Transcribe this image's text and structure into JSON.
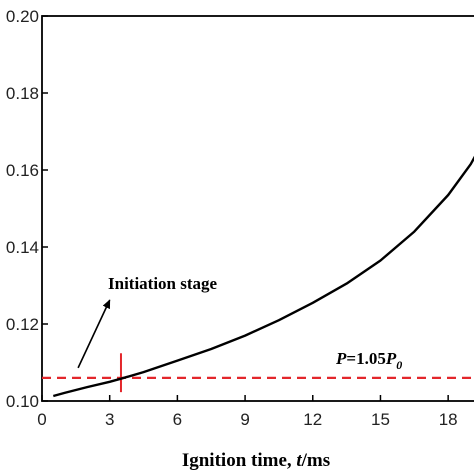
{
  "chart_data": {
    "type": "line",
    "xlabel_prefix": "Ignition time, ",
    "xlabel_var": "t",
    "xlabel_unit": "/ms",
    "ylabel": "",
    "xlim": [
      0,
      19.5
    ],
    "ylim": [
      0.1,
      0.2
    ],
    "xticks": [
      0,
      3,
      6,
      9,
      12,
      15,
      18
    ],
    "xtick_labels": [
      "0",
      "3",
      "6",
      "9",
      "12",
      "15",
      "18"
    ],
    "yticks": [
      0.1,
      0.12,
      0.14,
      0.16,
      0.18,
      0.2
    ],
    "ytick_labels": [
      "0.10",
      "0.12",
      "0.14",
      "0.16",
      "0.18",
      "0.20"
    ],
    "series": [
      {
        "color": "#000000",
        "x": [
          0.5,
          1.0,
          2.0,
          3.0,
          3.5,
          4.5,
          6.0,
          7.5,
          9.0,
          10.5,
          12.0,
          13.5,
          15.0,
          16.5,
          18.0,
          19.0,
          19.5
        ],
        "y": [
          0.1013,
          0.1021,
          0.1036,
          0.105,
          0.1058,
          0.1075,
          0.1105,
          0.1135,
          0.117,
          0.121,
          0.1255,
          0.1305,
          0.1365,
          0.144,
          0.1535,
          0.1615,
          0.1668
        ]
      }
    ],
    "reference_line": {
      "y": 0.106,
      "color": "#e3262b",
      "style": "dashed",
      "label_var": "P",
      "label_eq": "=1.05",
      "label_var2": "P",
      "label_sub": "0"
    },
    "marker": {
      "x": 3.5,
      "y_range": [
        0.1023,
        0.1124
      ],
      "color": "#e3262b"
    },
    "annotation": {
      "text": "Initiation stage",
      "arrow_from": [
        1.6,
        0.1086
      ],
      "arrow_to": [
        3.0,
        0.1262
      ]
    }
  }
}
